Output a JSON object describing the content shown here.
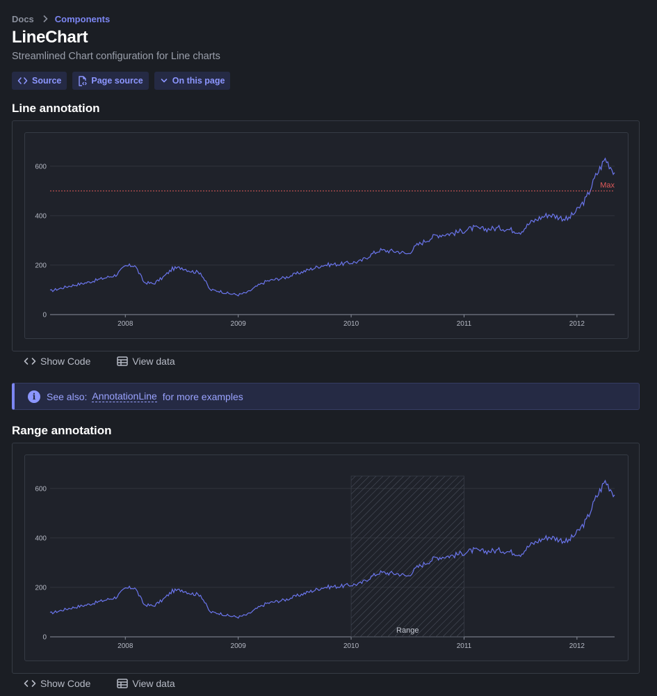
{
  "breadcrumb": {
    "home": "Docs",
    "current": "Components"
  },
  "page": {
    "title": "LineChart",
    "subtitle": "Streamlined Chart configuration for Line charts"
  },
  "buttons": {
    "source": "Source",
    "page_source": "Page source",
    "on_this_page": "On this page"
  },
  "sections": {
    "line": {
      "title": "Line annotation",
      "show_code": "Show Code",
      "view_data": "View data"
    },
    "range": {
      "title": "Range annotation",
      "show_code": "Show Code",
      "view_data": "View data"
    }
  },
  "note": {
    "prefix": "See also:",
    "link": "AnnotationLine",
    "suffix": "for more examples"
  },
  "colors": {
    "accent": "#7c86f2",
    "series": "#6b76ee",
    "annotation_line": "#e05a5a",
    "background": "#1b1e24"
  },
  "icons": {
    "crumb_sep": "chevron-right-icon",
    "source": "code-icon",
    "page_source": "file-code-icon",
    "on_this_page": "chevron-down-icon",
    "show_code": "code-icon",
    "view_data": "table-icon",
    "note": "info-icon"
  },
  "chart_data": [
    {
      "type": "line",
      "x_ticks": [
        "2008",
        "2009",
        "2010",
        "2011",
        "2012"
      ],
      "y_ticks": [
        "0",
        "200",
        "400",
        "600"
      ],
      "ylim": [
        0,
        650
      ],
      "xlim": [
        "2007-05",
        "2012-05"
      ],
      "grid": "horizontal",
      "annotation": {
        "type": "line",
        "y": 500,
        "label": "Max",
        "color": "#e05a5a"
      },
      "series": [
        {
          "x": [
            "2007-05",
            "2007-07",
            "2007-09",
            "2007-10",
            "2007-12",
            "2008-01",
            "2008-02",
            "2008-03",
            "2008-04",
            "2008-05",
            "2008-06",
            "2008-07",
            "2008-08",
            "2008-09",
            "2008-10",
            "2008-11",
            "2008-12",
            "2009-01",
            "2009-02",
            "2009-03",
            "2009-04",
            "2009-06",
            "2009-08",
            "2009-10",
            "2009-12",
            "2010-02",
            "2010-03",
            "2010-04",
            "2010-06",
            "2010-07",
            "2010-08",
            "2010-09",
            "2010-10",
            "2010-12",
            "2011-02",
            "2011-03",
            "2011-05",
            "2011-07",
            "2011-08",
            "2011-09",
            "2011-10",
            "2011-12",
            "2012-01",
            "2012-02",
            "2012-03",
            "2012-04",
            "2012-05"
          ],
          "values": [
            95,
            115,
            130,
            140,
            160,
            195,
            200,
            130,
            125,
            150,
            185,
            190,
            175,
            170,
            100,
            95,
            85,
            80,
            90,
            115,
            135,
            150,
            175,
            200,
            205,
            215,
            240,
            260,
            255,
            245,
            280,
            300,
            320,
            330,
            350,
            345,
            350,
            335,
            370,
            390,
            405,
            385,
            420,
            470,
            560,
            630,
            575
          ]
        }
      ]
    },
    {
      "type": "line",
      "x_ticks": [
        "2008",
        "2009",
        "2010",
        "2011",
        "2012"
      ],
      "y_ticks": [
        "0",
        "200",
        "400",
        "600"
      ],
      "ylim": [
        0,
        650
      ],
      "xlim": [
        "2007-05",
        "2012-05"
      ],
      "grid": "horizontal",
      "annotation": {
        "type": "range",
        "x_start": "2010-01",
        "x_end": "2011-01",
        "label": "Range"
      },
      "series": [
        {
          "x": [
            "2007-05",
            "2007-07",
            "2007-09",
            "2007-10",
            "2007-12",
            "2008-01",
            "2008-02",
            "2008-03",
            "2008-04",
            "2008-05",
            "2008-06",
            "2008-07",
            "2008-08",
            "2008-09",
            "2008-10",
            "2008-11",
            "2008-12",
            "2009-01",
            "2009-02",
            "2009-03",
            "2009-04",
            "2009-06",
            "2009-08",
            "2009-10",
            "2009-12",
            "2010-02",
            "2010-03",
            "2010-04",
            "2010-06",
            "2010-07",
            "2010-08",
            "2010-09",
            "2010-10",
            "2010-12",
            "2011-02",
            "2011-03",
            "2011-05",
            "2011-07",
            "2011-08",
            "2011-09",
            "2011-10",
            "2011-12",
            "2012-01",
            "2012-02",
            "2012-03",
            "2012-04",
            "2012-05"
          ],
          "values": [
            95,
            115,
            130,
            140,
            160,
            195,
            200,
            130,
            125,
            150,
            185,
            190,
            175,
            170,
            100,
            95,
            85,
            80,
            90,
            115,
            135,
            150,
            175,
            200,
            205,
            215,
            240,
            260,
            255,
            245,
            280,
            300,
            320,
            330,
            350,
            345,
            350,
            335,
            370,
            390,
            405,
            385,
            420,
            470,
            560,
            630,
            575
          ]
        }
      ]
    }
  ]
}
